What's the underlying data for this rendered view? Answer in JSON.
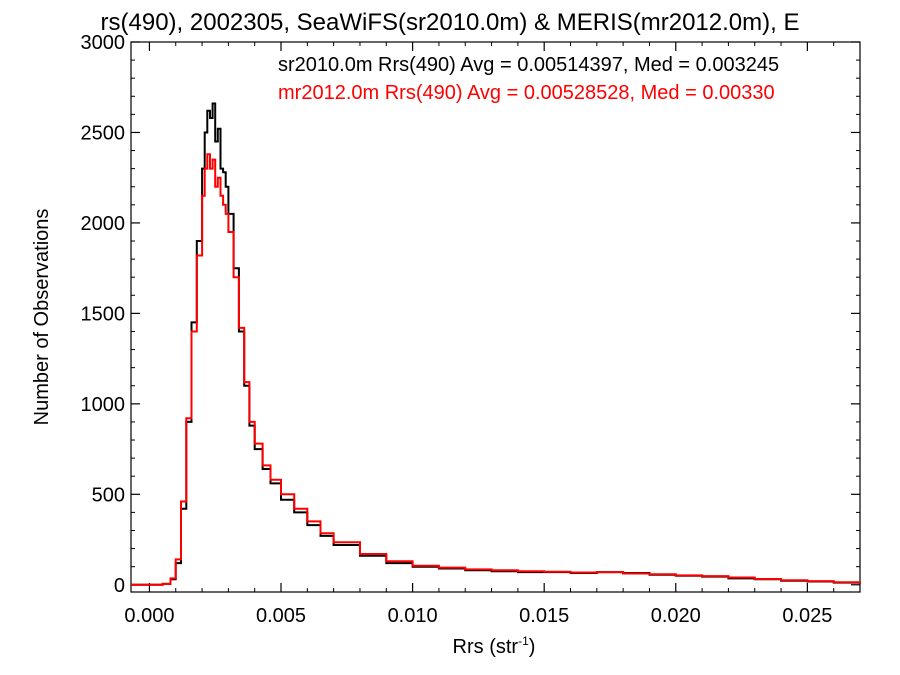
{
  "chart_data": {
    "type": "line",
    "title": "rs(490), 2002305, SeaWiFS(sr2010.0m) & MERIS(mr2012.0m), E",
    "xlabel": "Rrs (str",
    "xlabel_sup": "-1",
    "xlabel_close": ")",
    "ylabel": "Number of Observations",
    "xlim": [
      -0.0007,
      0.027
    ],
    "ylim": [
      -40,
      3000
    ],
    "x_ticks": [
      0.0,
      0.005,
      0.01,
      0.015,
      0.02,
      0.025
    ],
    "x_tick_labels": [
      "0.000",
      "0.005",
      "0.010",
      "0.015",
      "0.020",
      "0.025"
    ],
    "y_ticks": [
      0,
      500,
      1000,
      1500,
      2000,
      2500,
      3000
    ],
    "y_tick_labels": [
      "0",
      "500",
      "1000",
      "1500",
      "2000",
      "2500",
      "3000"
    ],
    "grid": false,
    "legend_placement": "top-right",
    "legend": [
      {
        "text": "sr2010.0m Rrs(490) Avg = 0.00514397, Med = 0.003245",
        "color": "#000000"
      },
      {
        "text": "mr2012.0m Rrs(490) Avg = 0.00528528, Med = 0.00330",
        "color": "#ff0000"
      }
    ],
    "series": [
      {
        "color": "#000000",
        "x": [
          -0.0007,
          0.0,
          0.0005,
          0.0008,
          0.001,
          0.0012,
          0.0014,
          0.0016,
          0.0018,
          0.002,
          0.0021,
          0.0022,
          0.0023,
          0.0024,
          0.0025,
          0.0026,
          0.0027,
          0.0028,
          0.0029,
          0.003,
          0.0032,
          0.0034,
          0.0036,
          0.0038,
          0.004,
          0.0043,
          0.0046,
          0.005,
          0.0055,
          0.006,
          0.0065,
          0.007,
          0.008,
          0.009,
          0.01,
          0.011,
          0.012,
          0.013,
          0.014,
          0.015,
          0.016,
          0.017,
          0.018,
          0.019,
          0.02,
          0.021,
          0.022,
          0.023,
          0.024,
          0.025,
          0.026,
          0.027
        ],
        "y": [
          0,
          0,
          5,
          30,
          120,
          420,
          900,
          1450,
          1900,
          2300,
          2500,
          2620,
          2580,
          2660,
          2450,
          2520,
          2300,
          2280,
          2200,
          2050,
          1750,
          1400,
          1100,
          880,
          750,
          640,
          560,
          470,
          400,
          330,
          270,
          220,
          160,
          120,
          100,
          90,
          80,
          75,
          70,
          70,
          65,
          70,
          65,
          55,
          50,
          45,
          35,
          30,
          22,
          18,
          12,
          8
        ]
      },
      {
        "color": "#ff0000",
        "x": [
          -0.0007,
          0.0,
          0.0005,
          0.0008,
          0.001,
          0.0012,
          0.0014,
          0.0016,
          0.0018,
          0.002,
          0.0021,
          0.0022,
          0.0023,
          0.0024,
          0.0025,
          0.0026,
          0.0027,
          0.0028,
          0.0029,
          0.003,
          0.0032,
          0.0034,
          0.0036,
          0.0038,
          0.004,
          0.0043,
          0.0046,
          0.005,
          0.0055,
          0.006,
          0.0065,
          0.007,
          0.008,
          0.009,
          0.01,
          0.011,
          0.012,
          0.013,
          0.014,
          0.015,
          0.016,
          0.017,
          0.018,
          0.019,
          0.02,
          0.021,
          0.022,
          0.023,
          0.024,
          0.025,
          0.026,
          0.027
        ],
        "y": [
          0,
          0,
          5,
          35,
          140,
          460,
          920,
          1400,
          1820,
          2150,
          2300,
          2380,
          2300,
          2350,
          2200,
          2250,
          2150,
          2100,
          2050,
          1950,
          1700,
          1420,
          1120,
          900,
          780,
          660,
          580,
          500,
          420,
          350,
          285,
          235,
          170,
          130,
          105,
          95,
          85,
          80,
          75,
          72,
          68,
          70,
          62,
          58,
          52,
          48,
          40,
          32,
          25,
          20,
          14,
          9
        ]
      }
    ]
  }
}
